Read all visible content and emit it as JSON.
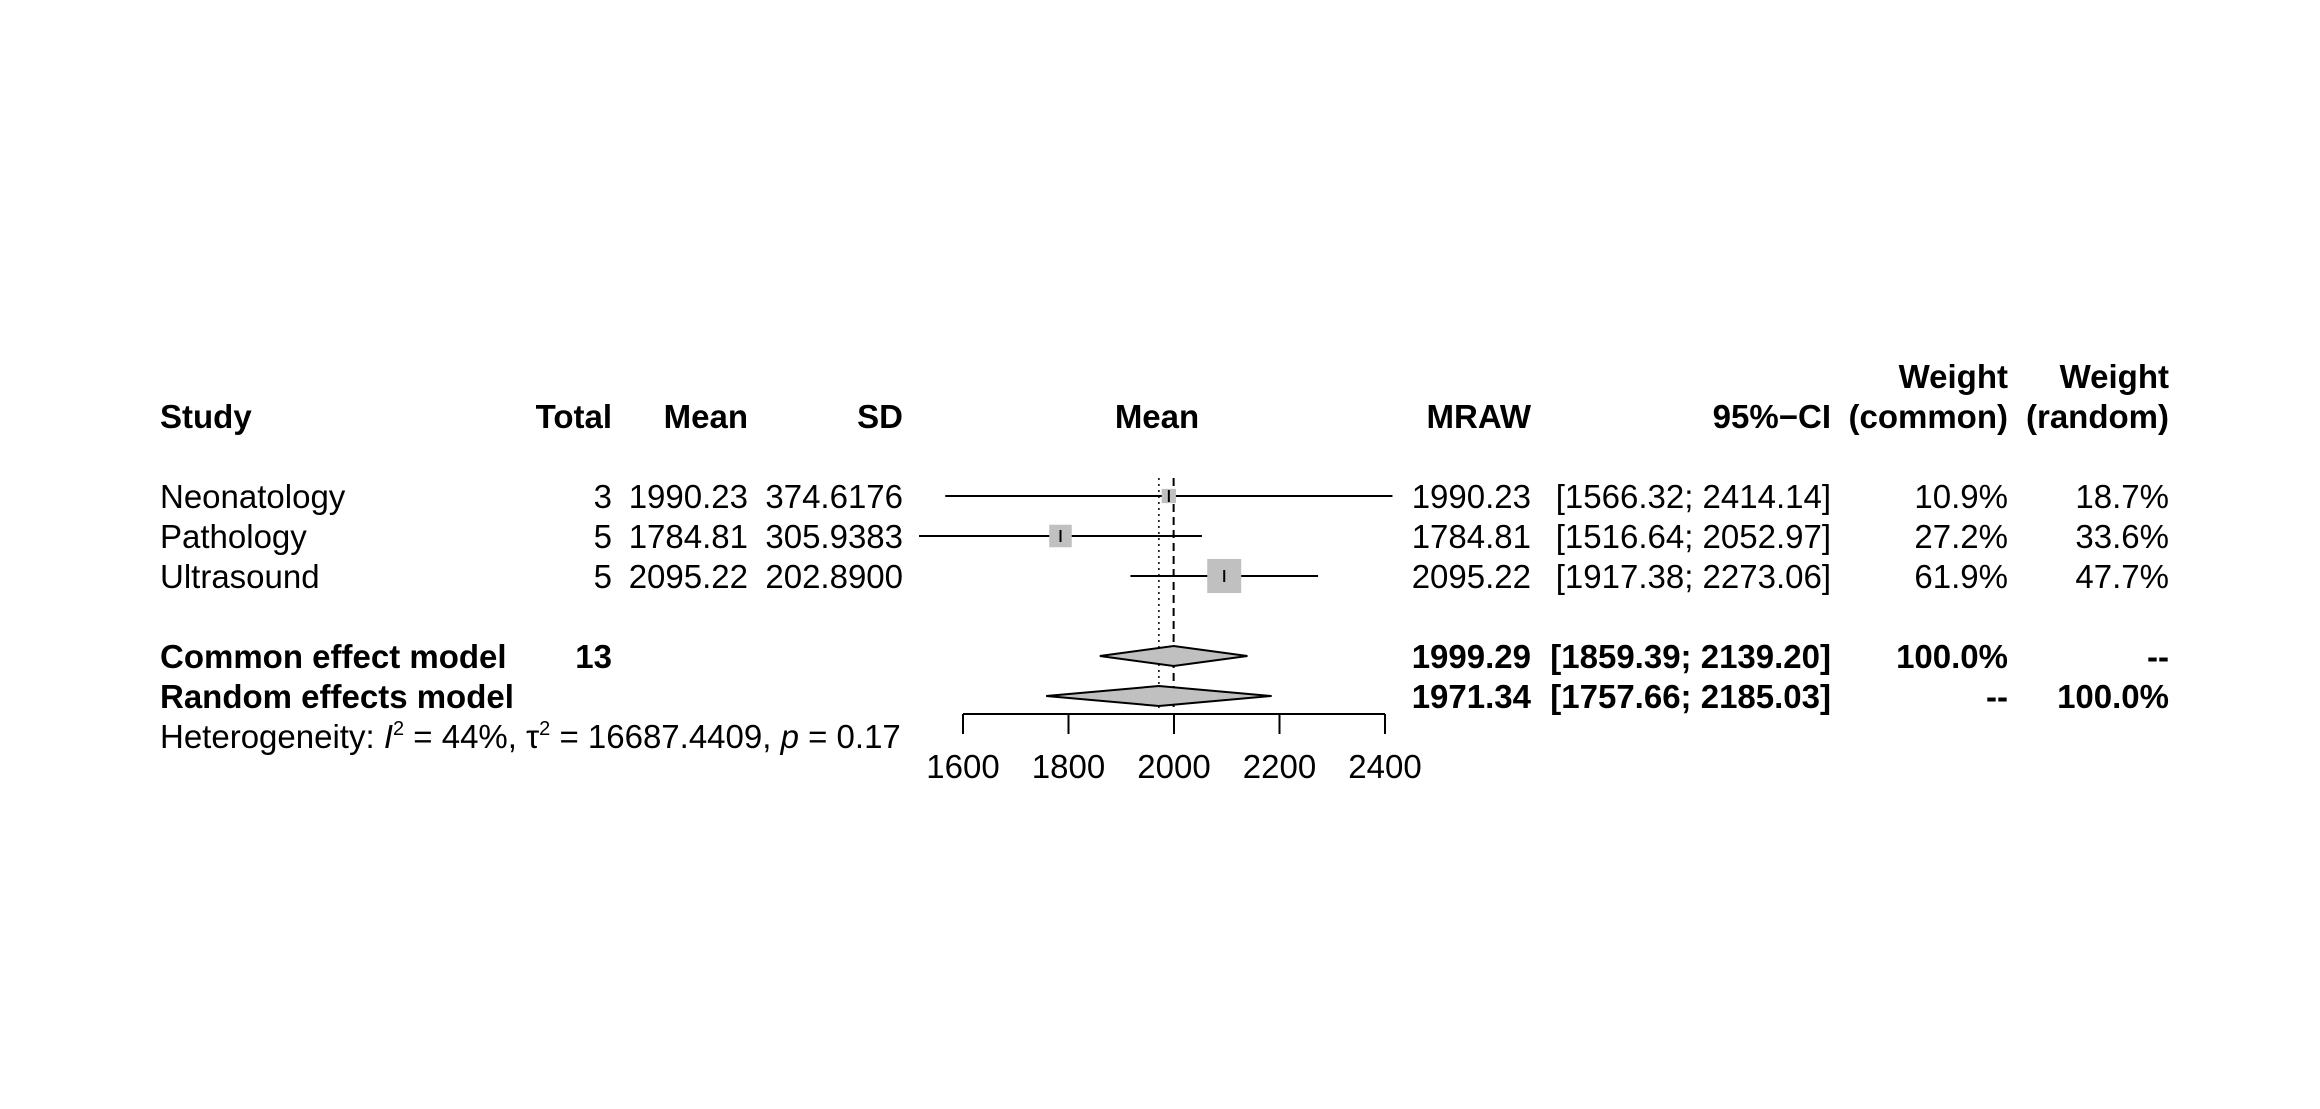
{
  "chart_data": {
    "type": "forest",
    "columns": {
      "study": "Study",
      "total": "Total",
      "mean": "Mean",
      "sd": "SD",
      "plot": "Mean",
      "mraw": "MRAW",
      "ci": "95%−CI",
      "weight_common": [
        "Weight",
        "(common)"
      ],
      "weight_random": [
        "Weight",
        "(random)"
      ]
    },
    "studies": [
      {
        "name": "Neonatology",
        "total": "3",
        "mean": "1990.23",
        "sd": "374.6176",
        "mraw": "1990.23",
        "ci": "[1566.32; 2414.14]",
        "w_common": "10.9%",
        "w_random": "18.7%",
        "est": 1990.23,
        "lower": 1566.32,
        "upper": 2414.14,
        "weight": 10.9
      },
      {
        "name": "Pathology",
        "total": "5",
        "mean": "1784.81",
        "sd": "305.9383",
        "mraw": "1784.81",
        "ci": "[1516.64; 2052.97]",
        "w_common": "27.2%",
        "w_random": "33.6%",
        "est": 1784.81,
        "lower": 1516.64,
        "upper": 2052.97,
        "weight": 27.2
      },
      {
        "name": "Ultrasound",
        "total": "5",
        "mean": "2095.22",
        "sd": "202.8900",
        "mraw": "2095.22",
        "ci": "[1917.38; 2273.06]",
        "w_common": "61.9%",
        "w_random": "47.7%",
        "est": 2095.22,
        "lower": 1917.38,
        "upper": 2273.06,
        "weight": 61.9
      }
    ],
    "models": [
      {
        "name": "Common effect model",
        "total": "13",
        "mraw": "1999.29",
        "ci": "[1859.39; 2139.20]",
        "w_common": "100.0%",
        "w_random": "--",
        "est": 1999.29,
        "lower": 1859.39,
        "upper": 2139.2
      },
      {
        "name": "Random effects model",
        "total": "",
        "mraw": "1971.34",
        "ci": "[1757.66; 2185.03]",
        "w_common": "--",
        "w_random": "100.0%",
        "est": 1971.34,
        "lower": 1757.66,
        "upper": 2185.03
      }
    ],
    "heterogeneity": {
      "prefix": "Heterogeneity: ",
      "i2_symbol": "I",
      "i2_value": " = 44%, ",
      "tau_symbol": "τ",
      "tau_value": " = 16687.4409, ",
      "p_symbol": "p",
      "p_value": " = 0.17"
    },
    "x_axis": {
      "ticks": [
        1600,
        1800,
        2000,
        2200,
        2400
      ],
      "range": [
        1600,
        2400
      ]
    },
    "colors": {
      "square": "#c0c0c0",
      "diamond": "#c0c0c0",
      "line": "#000000"
    }
  }
}
